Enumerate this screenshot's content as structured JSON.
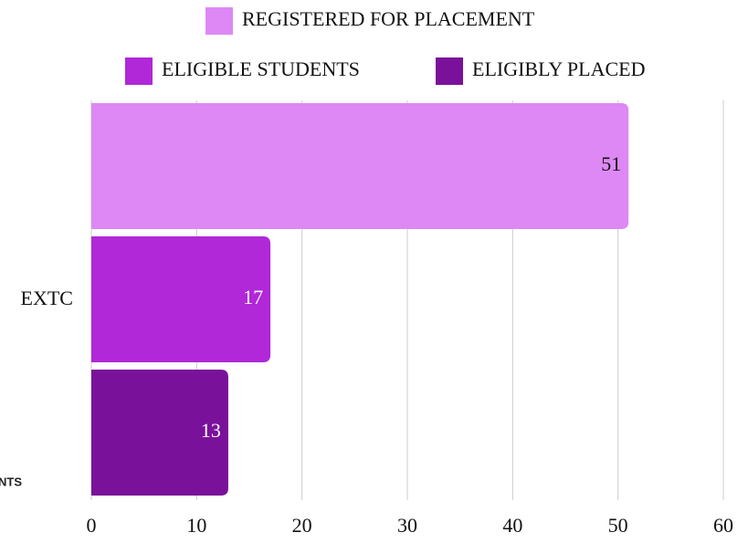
{
  "fragment": "NTS",
  "chart_data": {
    "type": "barh",
    "categories": [
      "EXTC"
    ],
    "series": [
      {
        "name": "REGISTERED FOR PLACEMENT",
        "color": "#dd88f5",
        "values": [
          51
        ]
      },
      {
        "name": "ELIGIBLE STUDENTS",
        "color": "#b028d8",
        "values": [
          17
        ]
      },
      {
        "name": "ELIGIBLY PLACED",
        "color": "#7a119a",
        "values": [
          13
        ]
      }
    ],
    "xlim": [
      0,
      60
    ],
    "xticks": [
      0,
      10,
      20,
      30,
      40,
      50,
      60
    ],
    "grid": true
  }
}
